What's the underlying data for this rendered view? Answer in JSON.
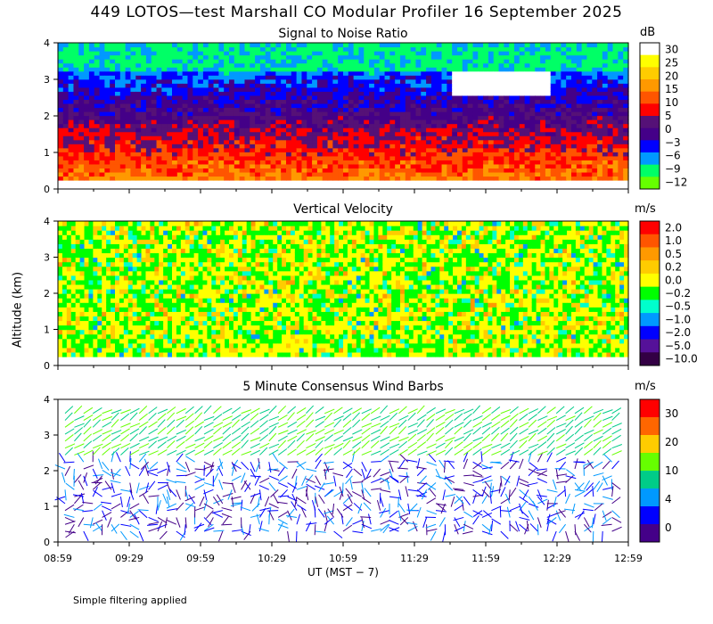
{
  "header": {
    "title": "449 LOTOS—test Marshall CO Modular Profiler 16 September 2025"
  },
  "axes": {
    "ylabel": "Altitude (km)",
    "xlabel": "UT  (MST − 7)",
    "x_ticks": [
      "08:59",
      "09:29",
      "09:59",
      "10:29",
      "10:59",
      "11:29",
      "11:59",
      "12:29",
      "12:59"
    ],
    "y_ticks": [
      "0",
      "1",
      "2",
      "3",
      "4"
    ],
    "ylim": [
      0,
      4
    ]
  },
  "footer": {
    "note": "Simple filtering applied"
  },
  "chart_data": [
    {
      "type": "heatmap",
      "title": "Signal to Noise Ratio",
      "unit": "dB",
      "ylim": [
        0,
        4
      ],
      "colorbar_labels": [
        "30",
        "25",
        "20",
        "15",
        "10",
        "5",
        "0",
        "−3",
        "−6",
        "−9",
        "−12"
      ],
      "colorbar_colors": [
        "#ffffff",
        "#ffff00",
        "#ffcc00",
        "#ff9900",
        "#ff5500",
        "#ff0000",
        "#551177",
        "#440088",
        "#0000ff",
        "#0099ff",
        "#00ff66",
        "#66ff00"
      ],
      "profile_dB": [
        {
          "alt": 0.3,
          "snr": 16
        },
        {
          "alt": 0.7,
          "snr": 14
        },
        {
          "alt": 1.1,
          "snr": 11
        },
        {
          "alt": 1.5,
          "snr": 9
        },
        {
          "alt": 1.9,
          "snr": 6
        },
        {
          "alt": 2.3,
          "snr": 2
        },
        {
          "alt": 2.7,
          "snr": -4
        },
        {
          "alt": 3.1,
          "snr": -8
        },
        {
          "alt": 3.5,
          "snr": -10
        },
        {
          "alt": 3.9,
          "snr": -11
        }
      ]
    },
    {
      "type": "heatmap",
      "title": "Vertical Velocity",
      "unit": "m/s",
      "ylim": [
        0,
        4
      ],
      "colorbar_labels": [
        "2.0",
        "1.0",
        "0.5",
        "0.2",
        "0.0",
        "−0.2",
        "−0.5",
        "−1.0",
        "−2.0",
        "−5.0",
        "−10.0"
      ],
      "colorbar_colors": [
        "#ff0000",
        "#ff5500",
        "#ff9900",
        "#ffcc00",
        "#ffff00",
        "#00ff00",
        "#00ffcc",
        "#0099ff",
        "#0000ff",
        "#551199",
        "#330044"
      ]
    },
    {
      "type": "scatter",
      "title": "5 Minute Consensus Wind Barbs",
      "unit": "m/s",
      "ylim": [
        0,
        4
      ],
      "colorbar_labels": [
        "30",
        "20",
        "10",
        "4",
        "0"
      ],
      "colorbar_colors": [
        "#ff0000",
        "#ff6600",
        "#ffcc00",
        "#66ff00",
        "#00cc88",
        "#0099ff",
        "#0000ff",
        "#440088"
      ]
    }
  ]
}
